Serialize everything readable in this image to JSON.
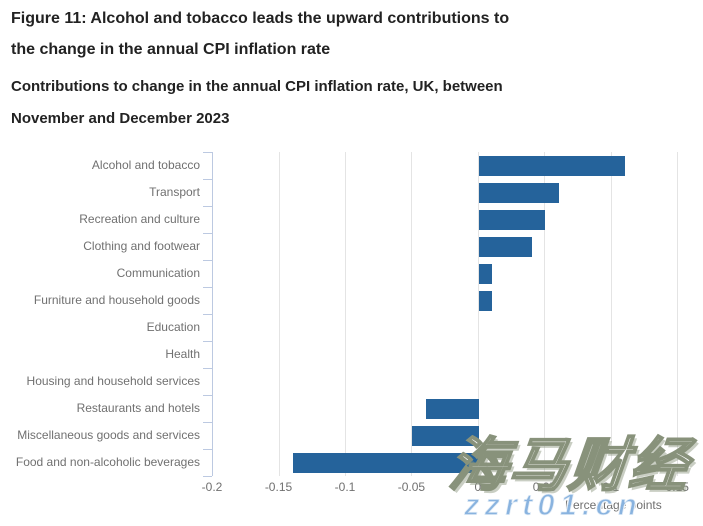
{
  "header": {
    "title_lines": [
      "Figure 11: Alcohol and tobacco leads the upward contributions to",
      "the change in the annual CPI inflation rate"
    ],
    "subtitle_lines": [
      "Contributions to change in the annual CPI inflation rate, UK, between",
      "November and December 2023"
    ]
  },
  "chart_data": {
    "type": "bar",
    "orientation": "horizontal",
    "title": "Figure 11: Alcohol and tobacco leads the upward contributions to the change in the annual CPI inflation rate",
    "subtitle": "Contributions to change in the annual CPI inflation rate, UK, between November and December 2023",
    "categories": [
      "Alcohol and tobacco",
      "Transport",
      "Recreation and culture",
      "Clothing and footwear",
      "Communication",
      "Furniture and household goods",
      "Education",
      "Health",
      "Housing and household services",
      "Restaurants and hotels",
      "Miscellaneous goods and services",
      "Food and non-alcoholic beverages"
    ],
    "values": [
      0.11,
      0.06,
      0.05,
      0.04,
      0.01,
      0.01,
      0,
      0,
      0,
      -0.04,
      -0.05,
      -0.14
    ],
    "xlabel": "Percentage points",
    "ylabel": "",
    "x_ticks": [
      -0.2,
      -0.15,
      -0.1,
      -0.05,
      0,
      0.05,
      0.1,
      0.15
    ],
    "x_tick_labels": [
      "-0.2",
      "-0.15",
      "-0.1",
      "-0.05",
      "0",
      "0.05",
      "0.1",
      "0.15"
    ],
    "xlim": [
      -0.2,
      0.152
    ],
    "grid": true,
    "legend": false
  },
  "watermarks": {
    "cjk_text": "海马财经",
    "url_text": "zzrt01.cn"
  },
  "colors": {
    "bar": "#25639b",
    "axis": "#bcc9e1",
    "gridline": "#e4e4e4",
    "label_gray": "#707070",
    "title_text": "#222222",
    "watermark_blue": "#7cabdb"
  }
}
